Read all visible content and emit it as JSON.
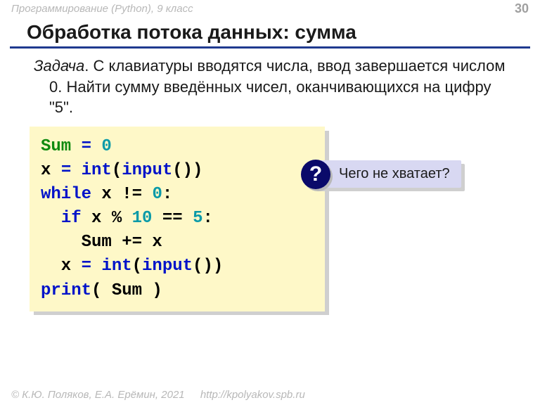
{
  "header": {
    "course": "Программирование (Python), 9 класс",
    "page_number": "30"
  },
  "title": "Обработка потока данных: сумма",
  "task": {
    "label": "Задача",
    "text": ". С клавиатуры вводятся числа, ввод завершается числом 0. Найти сумму введённых чисел, оканчивающихся на цифру \"5\"."
  },
  "code": {
    "lines": [
      [
        {
          "t": "Sum ",
          "c": "kw-green"
        },
        {
          "t": "=",
          "c": "kw-blue"
        },
        {
          "t": " 0",
          "c": "kw-num"
        }
      ],
      [
        {
          "t": "x ",
          "c": ""
        },
        {
          "t": "=",
          "c": "kw-blue"
        },
        {
          "t": " int",
          "c": "kw-blue"
        },
        {
          "t": "(",
          "c": ""
        },
        {
          "t": "input",
          "c": "kw-blue"
        },
        {
          "t": "())",
          "c": ""
        }
      ],
      [
        {
          "t": "while",
          "c": "kw-blue"
        },
        {
          "t": " x != ",
          "c": ""
        },
        {
          "t": "0",
          "c": "kw-num"
        },
        {
          "t": ":",
          "c": ""
        }
      ],
      [
        {
          "t": "  ",
          "c": ""
        },
        {
          "t": "if",
          "c": "kw-blue"
        },
        {
          "t": " x % ",
          "c": ""
        },
        {
          "t": "10",
          "c": "kw-num"
        },
        {
          "t": " == ",
          "c": ""
        },
        {
          "t": "5",
          "c": "kw-num"
        },
        {
          "t": ":",
          "c": ""
        }
      ],
      [
        {
          "t": "    Sum += x",
          "c": ""
        }
      ],
      [
        {
          "t": "  x ",
          "c": ""
        },
        {
          "t": "=",
          "c": "kw-blue"
        },
        {
          "t": " int",
          "c": "kw-blue"
        },
        {
          "t": "(",
          "c": ""
        },
        {
          "t": "input",
          "c": "kw-blue"
        },
        {
          "t": "())",
          "c": ""
        }
      ],
      [
        {
          "t": "print",
          "c": "kw-blue"
        },
        {
          "t": "( Sum )",
          "c": ""
        }
      ]
    ]
  },
  "callout": {
    "symbol": "?",
    "text": "Чего не хватает?"
  },
  "footer": {
    "copyright": "© К.Ю. Поляков, Е.А. Ерёмин, 2021",
    "url": "http://kpolyakov.spb.ru"
  },
  "colors": {
    "accent_rule": "#1f3a8f",
    "code_bg": "#fef8c8",
    "callout_bg": "#d8d8f2",
    "qmark_bg": "#0a0a6a",
    "muted_text": "#b8b8b8"
  }
}
